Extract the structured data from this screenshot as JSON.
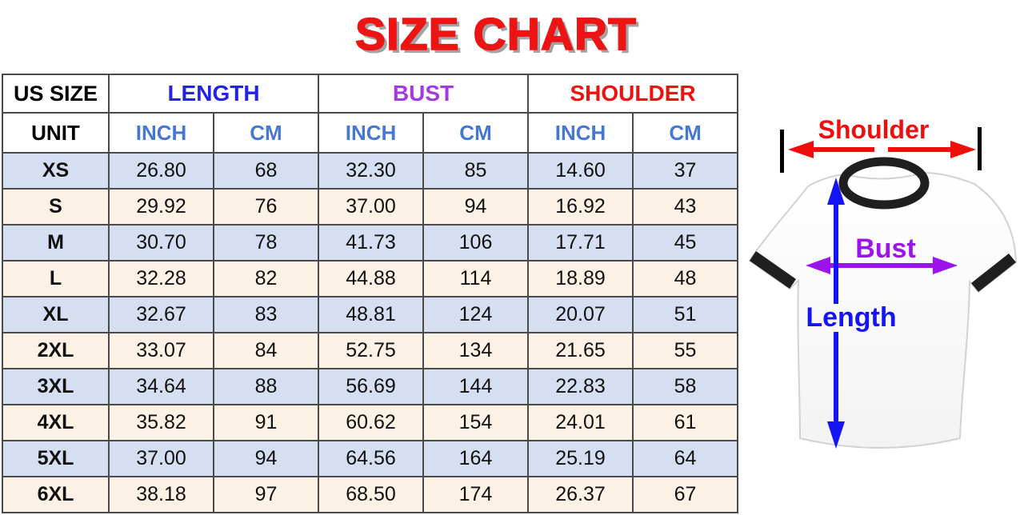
{
  "title": "SIZE CHART",
  "table": {
    "corner_label": "US SIZE",
    "unit_label": "UNIT",
    "groups": [
      {
        "label": "LENGTH",
        "color": "#2323e8"
      },
      {
        "label": "BUST",
        "color": "#a238e8"
      },
      {
        "label": "SHOULDER",
        "color": "#f01010"
      }
    ],
    "unit_cols": [
      "INCH",
      "CM",
      "INCH",
      "CM",
      "INCH",
      "CM"
    ],
    "rows": [
      {
        "size": "XS",
        "values": [
          "26.80",
          "68",
          "32.30",
          "85",
          "14.60",
          "37"
        ]
      },
      {
        "size": "S",
        "values": [
          "29.92",
          "76",
          "37.00",
          "94",
          "16.92",
          "43"
        ]
      },
      {
        "size": "M",
        "values": [
          "30.70",
          "78",
          "41.73",
          "106",
          "17.71",
          "45"
        ]
      },
      {
        "size": "L",
        "values": [
          "32.28",
          "82",
          "44.88",
          "114",
          "18.89",
          "48"
        ]
      },
      {
        "size": "XL",
        "values": [
          "32.67",
          "83",
          "48.81",
          "124",
          "20.07",
          "51"
        ]
      },
      {
        "size": "2XL",
        "values": [
          "33.07",
          "84",
          "52.75",
          "134",
          "21.65",
          "55"
        ]
      },
      {
        "size": "3XL",
        "values": [
          "34.64",
          "88",
          "56.69",
          "144",
          "22.83",
          "58"
        ]
      },
      {
        "size": "4XL",
        "values": [
          "35.82",
          "91",
          "60.62",
          "154",
          "24.01",
          "61"
        ]
      },
      {
        "size": "5XL",
        "values": [
          "37.00",
          "94",
          "64.56",
          "164",
          "25.19",
          "64"
        ]
      },
      {
        "size": "6XL",
        "values": [
          "38.18",
          "97",
          "68.50",
          "174",
          "26.37",
          "67"
        ]
      }
    ]
  },
  "diagram": {
    "shoulder_label": "Shoulder",
    "bust_label": "Bust",
    "length_label": "Length",
    "arrow_colors": {
      "shoulder": "#f20d0d",
      "bust": "#9b14eb",
      "length": "#1414f5"
    }
  },
  "colors": {
    "title_red": "#ee1414",
    "title_shadow": "#a3a3a3",
    "row_blue": "#d6dff1",
    "row_cream": "#fbf1e4",
    "unit_blue": "#4677d2",
    "table_border": "#4a4a4a",
    "shirt_trim_black": "#1f1f1f"
  },
  "chart_data": {
    "type": "table",
    "title": "SIZE CHART",
    "columns": [
      "US SIZE",
      "LENGTH INCH",
      "LENGTH CM",
      "BUST INCH",
      "BUST CM",
      "SHOULDER INCH",
      "SHOULDER CM"
    ],
    "rows": [
      [
        "XS",
        26.8,
        68,
        32.3,
        85,
        14.6,
        37
      ],
      [
        "S",
        29.92,
        76,
        37.0,
        94,
        16.92,
        43
      ],
      [
        "M",
        30.7,
        78,
        41.73,
        106,
        17.71,
        45
      ],
      [
        "L",
        32.28,
        82,
        44.88,
        114,
        18.89,
        48
      ],
      [
        "XL",
        32.67,
        83,
        48.81,
        124,
        20.07,
        51
      ],
      [
        "2XL",
        33.07,
        84,
        52.75,
        134,
        21.65,
        55
      ],
      [
        "3XL",
        34.64,
        88,
        56.69,
        144,
        22.83,
        58
      ],
      [
        "4XL",
        35.82,
        91,
        60.62,
        154,
        24.01,
        61
      ],
      [
        "5XL",
        37.0,
        94,
        64.56,
        164,
        25.19,
        64
      ],
      [
        "6XL",
        38.18,
        97,
        68.5,
        174,
        26.37,
        67
      ]
    ]
  }
}
